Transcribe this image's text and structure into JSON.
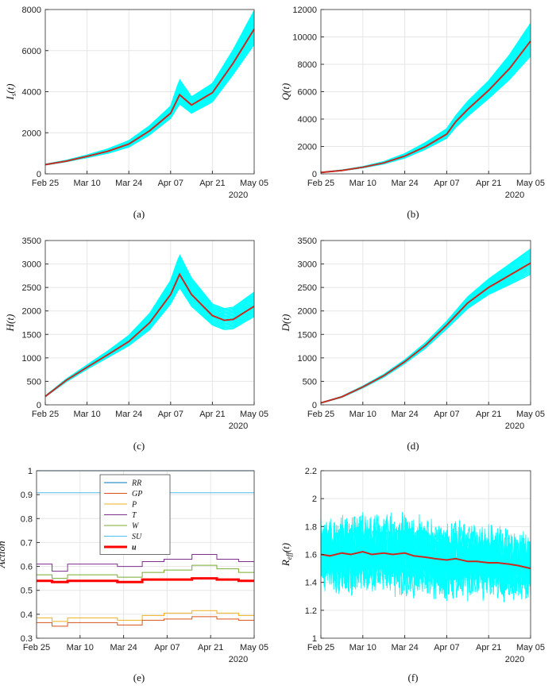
{
  "colors": {
    "band": "#00ffff",
    "mean": "#cc2a1e",
    "axis": "#333333"
  },
  "chart_data": [
    {
      "id": "a",
      "type": "line",
      "caption": "(a)",
      "ylabel": "I_s(t)",
      "xlabel": "",
      "year": "2020",
      "xlim": [
        0,
        70
      ],
      "ylim": [
        0,
        8000
      ],
      "xticks": [
        0,
        14,
        28,
        42,
        56,
        70
      ],
      "xtick_labels": [
        "Feb 25",
        "Mar 10",
        "Mar 24",
        "Apr 07",
        "Apr 21",
        "May 05"
      ],
      "yticks": [
        0,
        2000,
        4000,
        6000,
        8000
      ],
      "ytick_labels": [
        "0",
        "2000",
        "4000",
        "6000",
        "8000"
      ],
      "series": [
        {
          "name": "mean",
          "x": [
            0,
            7,
            14,
            21,
            28,
            35,
            42,
            45,
            49,
            56,
            63,
            70
          ],
          "values": [
            450,
            620,
            850,
            1100,
            1450,
            2100,
            2950,
            3850,
            3350,
            3950,
            5400,
            7050
          ]
        },
        {
          "name": "band_upper",
          "x": [
            0,
            7,
            14,
            21,
            28,
            35,
            42,
            45,
            49,
            56,
            63,
            70
          ],
          "values": [
            470,
            660,
            920,
            1220,
            1620,
            2350,
            3300,
            4600,
            3750,
            4400,
            6050,
            7950
          ]
        },
        {
          "name": "band_lower",
          "x": [
            0,
            7,
            14,
            21,
            28,
            35,
            42,
            45,
            49,
            56,
            63,
            70
          ],
          "values": [
            430,
            590,
            790,
            1000,
            1300,
            1900,
            2700,
            3400,
            2950,
            3500,
            4850,
            6300
          ]
        }
      ]
    },
    {
      "id": "b",
      "type": "line",
      "caption": "(b)",
      "ylabel": "Q(t)",
      "xlabel": "",
      "year": "2020",
      "xlim": [
        0,
        70
      ],
      "ylim": [
        0,
        12000
      ],
      "xticks": [
        0,
        14,
        28,
        42,
        56,
        70
      ],
      "xtick_labels": [
        "Feb 25",
        "Mar 10",
        "Mar 24",
        "Apr 07",
        "Apr 21",
        "May 05"
      ],
      "yticks": [
        0,
        2000,
        4000,
        6000,
        8000,
        10000,
        12000
      ],
      "ytick_labels": [
        "0",
        "2000",
        "4000",
        "6000",
        "8000",
        "10000",
        "12000"
      ],
      "series": [
        {
          "name": "mean",
          "x": [
            0,
            7,
            14,
            21,
            28,
            35,
            42,
            45,
            49,
            56,
            63,
            70
          ],
          "values": [
            100,
            250,
            480,
            800,
            1300,
            2000,
            2900,
            3800,
            4700,
            6100,
            7700,
            9700
          ]
        },
        {
          "name": "band_upper",
          "x": [
            0,
            7,
            14,
            21,
            28,
            35,
            42,
            45,
            49,
            56,
            63,
            70
          ],
          "values": [
            110,
            280,
            530,
            900,
            1480,
            2300,
            3300,
            4250,
            5300,
            6800,
            8700,
            11000
          ]
        },
        {
          "name": "band_lower",
          "x": [
            0,
            7,
            14,
            21,
            28,
            35,
            42,
            45,
            49,
            56,
            63,
            70
          ],
          "values": [
            90,
            230,
            440,
            720,
            1150,
            1800,
            2600,
            3400,
            4200,
            5500,
            6900,
            8600
          ]
        }
      ]
    },
    {
      "id": "c",
      "type": "line",
      "caption": "(c)",
      "ylabel": "H(t)",
      "xlabel": "",
      "year": "2020",
      "xlim": [
        0,
        70
      ],
      "ylim": [
        0,
        3500
      ],
      "xticks": [
        0,
        14,
        28,
        42,
        56,
        70
      ],
      "xtick_labels": [
        "Feb 25",
        "Mar 10",
        "Mar 24",
        "Apr 07",
        "Apr 21",
        "May 05"
      ],
      "yticks": [
        0,
        500,
        1000,
        1500,
        2000,
        2500,
        3000,
        3500
      ],
      "ytick_labels": [
        "0",
        "500",
        "1000",
        "1500",
        "2000",
        "2500",
        "3000",
        "3500"
      ],
      "series": [
        {
          "name": "mean",
          "x": [
            0,
            7,
            14,
            21,
            28,
            35,
            42,
            45,
            49,
            56,
            60,
            63,
            70
          ],
          "values": [
            180,
            520,
            800,
            1070,
            1350,
            1750,
            2350,
            2780,
            2350,
            1900,
            1800,
            1820,
            2100
          ]
        },
        {
          "name": "band_upper",
          "x": [
            0,
            7,
            14,
            21,
            28,
            35,
            42,
            45,
            49,
            56,
            60,
            63,
            70
          ],
          "values": [
            190,
            550,
            850,
            1150,
            1480,
            1950,
            2650,
            3200,
            2700,
            2150,
            2050,
            2080,
            2400
          ]
        },
        {
          "name": "band_lower",
          "x": [
            0,
            7,
            14,
            21,
            28,
            35,
            42,
            45,
            49,
            56,
            60,
            63,
            70
          ],
          "values": [
            170,
            490,
            760,
            1010,
            1260,
            1600,
            2150,
            2500,
            2100,
            1700,
            1600,
            1620,
            1880
          ]
        }
      ]
    },
    {
      "id": "d",
      "type": "line",
      "caption": "(d)",
      "ylabel": "D(t)",
      "xlabel": "",
      "year": "2020",
      "xlim": [
        0,
        70
      ],
      "ylim": [
        0,
        3500
      ],
      "xticks": [
        0,
        14,
        28,
        42,
        56,
        70
      ],
      "xtick_labels": [
        "Feb 25",
        "Mar 10",
        "Mar 24",
        "Apr 07",
        "Apr 21",
        "May 05"
      ],
      "yticks": [
        0,
        500,
        1000,
        1500,
        2000,
        2500,
        3000,
        3500
      ],
      "ytick_labels": [
        "0",
        "500",
        "1000",
        "1500",
        "2000",
        "2500",
        "3000",
        "3500"
      ],
      "series": [
        {
          "name": "mean",
          "x": [
            0,
            7,
            14,
            21,
            28,
            35,
            42,
            49,
            56,
            63,
            70
          ],
          "values": [
            40,
            170,
            380,
            620,
            920,
            1270,
            1700,
            2170,
            2500,
            2760,
            3020
          ]
        },
        {
          "name": "band_upper",
          "x": [
            0,
            7,
            14,
            21,
            28,
            35,
            42,
            49,
            56,
            63,
            70
          ],
          "values": [
            45,
            180,
            400,
            650,
            960,
            1330,
            1780,
            2300,
            2680,
            3000,
            3320
          ]
        },
        {
          "name": "band_lower",
          "x": [
            0,
            7,
            14,
            21,
            28,
            35,
            42,
            49,
            56,
            63,
            70
          ],
          "values": [
            35,
            160,
            360,
            590,
            880,
            1210,
            1620,
            2050,
            2350,
            2560,
            2780
          ]
        }
      ]
    },
    {
      "id": "e",
      "type": "line",
      "caption": "(e)",
      "ylabel": "Action",
      "xlabel": "",
      "year": "2020",
      "xlim": [
        0,
        70
      ],
      "ylim": [
        0.3,
        1.0
      ],
      "xticks": [
        0,
        14,
        28,
        42,
        56,
        70
      ],
      "xtick_labels": [
        "Feb 25",
        "Mar 10",
        "Mar 24",
        "Apr 07",
        "Apr 21",
        "May 05"
      ],
      "yticks": [
        0.3,
        0.4,
        0.5,
        0.6,
        0.7,
        0.8,
        0.9,
        1.0
      ],
      "ytick_labels": [
        "0.3",
        "0.4",
        "0.5",
        "0.6",
        "0.7",
        "0.8",
        "0.9",
        "1"
      ],
      "legend": {
        "placement": "top-center",
        "entries": [
          "RR",
          "GP",
          "P",
          "T",
          "W",
          "SU",
          "u"
        ]
      },
      "series": [
        {
          "name": "RR",
          "color": "#0072bd",
          "width": 1,
          "step": true,
          "x": [
            0,
            70
          ],
          "values": [
            1.0,
            1.0
          ]
        },
        {
          "name": "SU",
          "color": "#4dbeee",
          "width": 1,
          "step": true,
          "x": [
            0,
            70
          ],
          "values": [
            0.908,
            0.908
          ]
        },
        {
          "name": "T",
          "color": "#7e2f8e",
          "width": 1,
          "step": true,
          "x": [
            0,
            5,
            10,
            17,
            26,
            34,
            41,
            50,
            58,
            65,
            70
          ],
          "values": [
            0.61,
            0.58,
            0.61,
            0.61,
            0.6,
            0.62,
            0.63,
            0.65,
            0.63,
            0.62,
            0.62
          ]
        },
        {
          "name": "W",
          "color": "#77ac30",
          "width": 1,
          "step": true,
          "x": [
            0,
            5,
            10,
            17,
            26,
            34,
            41,
            50,
            58,
            65,
            70
          ],
          "values": [
            0.565,
            0.55,
            0.565,
            0.565,
            0.555,
            0.575,
            0.585,
            0.605,
            0.59,
            0.575,
            0.575
          ]
        },
        {
          "name": "u",
          "color": "#ff0000",
          "width": 3,
          "step": true,
          "x": [
            0,
            5,
            10,
            17,
            26,
            34,
            41,
            50,
            58,
            65,
            70
          ],
          "values": [
            0.54,
            0.535,
            0.54,
            0.54,
            0.535,
            0.545,
            0.545,
            0.55,
            0.545,
            0.54,
            0.54
          ]
        },
        {
          "name": "P",
          "color": "#edb120",
          "width": 1,
          "step": true,
          "x": [
            0,
            5,
            10,
            17,
            26,
            34,
            41,
            50,
            58,
            65,
            70
          ],
          "values": [
            0.385,
            0.37,
            0.385,
            0.385,
            0.375,
            0.395,
            0.405,
            0.415,
            0.405,
            0.395,
            0.395
          ]
        },
        {
          "name": "GP",
          "color": "#d95319",
          "width": 1,
          "step": true,
          "x": [
            0,
            5,
            10,
            17,
            26,
            34,
            41,
            50,
            58,
            65,
            70
          ],
          "values": [
            0.365,
            0.35,
            0.365,
            0.365,
            0.355,
            0.375,
            0.38,
            0.39,
            0.38,
            0.375,
            0.375
          ]
        }
      ]
    },
    {
      "id": "f",
      "type": "line",
      "caption": "(f)",
      "ylabel": "R_eff(t)",
      "xlabel": "",
      "year": "2020",
      "xlim": [
        0,
        70
      ],
      "ylim": [
        1.0,
        2.2
      ],
      "xticks": [
        0,
        14,
        28,
        42,
        56,
        70
      ],
      "xtick_labels": [
        "Feb 25",
        "Mar 10",
        "Mar 24",
        "Apr 07",
        "Apr 21",
        "May 05"
      ],
      "yticks": [
        1.0,
        1.2,
        1.4,
        1.6,
        1.8,
        2.0,
        2.2
      ],
      "ytick_labels": [
        "1",
        "1.2",
        "1.4",
        "1.6",
        "1.8",
        "2",
        "2.2"
      ],
      "series": [
        {
          "name": "mean",
          "x": [
            0,
            3,
            7,
            10,
            14,
            17,
            21,
            24,
            28,
            31,
            35,
            38,
            42,
            45,
            49,
            52,
            56,
            59,
            63,
            66,
            70
          ],
          "values": [
            1.6,
            1.59,
            1.61,
            1.6,
            1.62,
            1.6,
            1.61,
            1.6,
            1.61,
            1.59,
            1.58,
            1.57,
            1.56,
            1.57,
            1.55,
            1.55,
            1.54,
            1.54,
            1.53,
            1.52,
            1.5
          ]
        },
        {
          "name": "band_upper",
          "x": [
            0,
            7,
            14,
            21,
            28,
            35,
            42,
            49,
            56,
            63,
            70
          ],
          "values": [
            1.9,
            1.92,
            1.95,
            1.93,
            1.96,
            1.88,
            1.86,
            1.84,
            1.82,
            1.8,
            1.74
          ]
        },
        {
          "name": "band_lower",
          "x": [
            0,
            7,
            14,
            21,
            28,
            35,
            42,
            49,
            56,
            63,
            70
          ],
          "values": [
            1.33,
            1.32,
            1.31,
            1.3,
            1.29,
            1.27,
            1.26,
            1.24,
            1.24,
            1.23,
            1.23
          ]
        }
      ]
    }
  ]
}
